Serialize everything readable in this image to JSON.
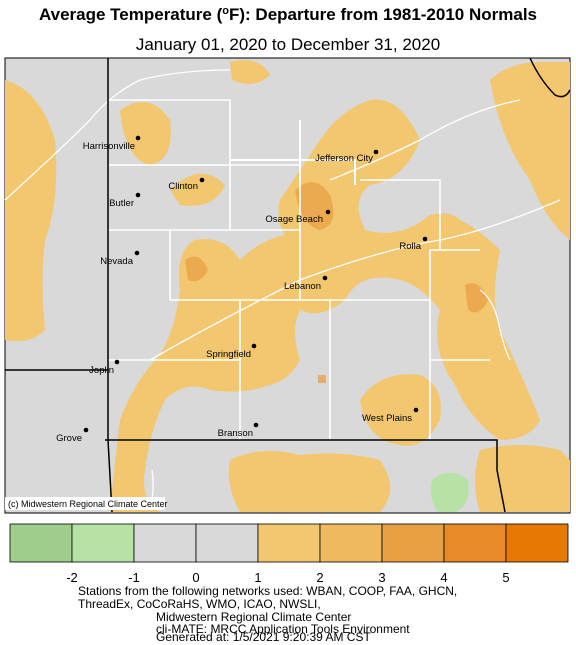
{
  "header": {
    "title": {
      "before": "Average Temperature (",
      "sup": "o",
      "after": "F): Departure from 1981-2010 Normals"
    },
    "subtitle": "January 01, 2020 to December 31, 2020"
  },
  "map": {
    "credit": "(c) Midwestern Regional Climate Center",
    "cities": [
      "Harrisonville",
      "Clinton",
      "Butler",
      "Jefferson City",
      "Osage Beach",
      "Nevada",
      "Rolla",
      "Lebanon",
      "Springfield",
      "Joplin",
      "West Plains",
      "Branson",
      "Grove"
    ]
  },
  "legend": {
    "colors": [
      "#9fce8c",
      "#b7e2a5",
      "#d9d9d9",
      "#d9d9d9",
      "#f2c76f",
      "#efba5f",
      "#e9a043",
      "#e88a2a",
      "#e67a05"
    ],
    "ticks": [
      -2,
      -1,
      0,
      1,
      2,
      3,
      4,
      5
    ]
  },
  "footer": [
    "Stations from the following networks used: WBAN, COOP, FAA, GHCN,",
    "ThreadEx, CoCoRaHS, WMO, ICAO, NWSLI,",
    "Midwestern Regional Climate Center",
    "cli-MATE: MRCC Application Tools Environment",
    "Generated at: 1/5/2021 9:20:39 AM CST"
  ]
}
